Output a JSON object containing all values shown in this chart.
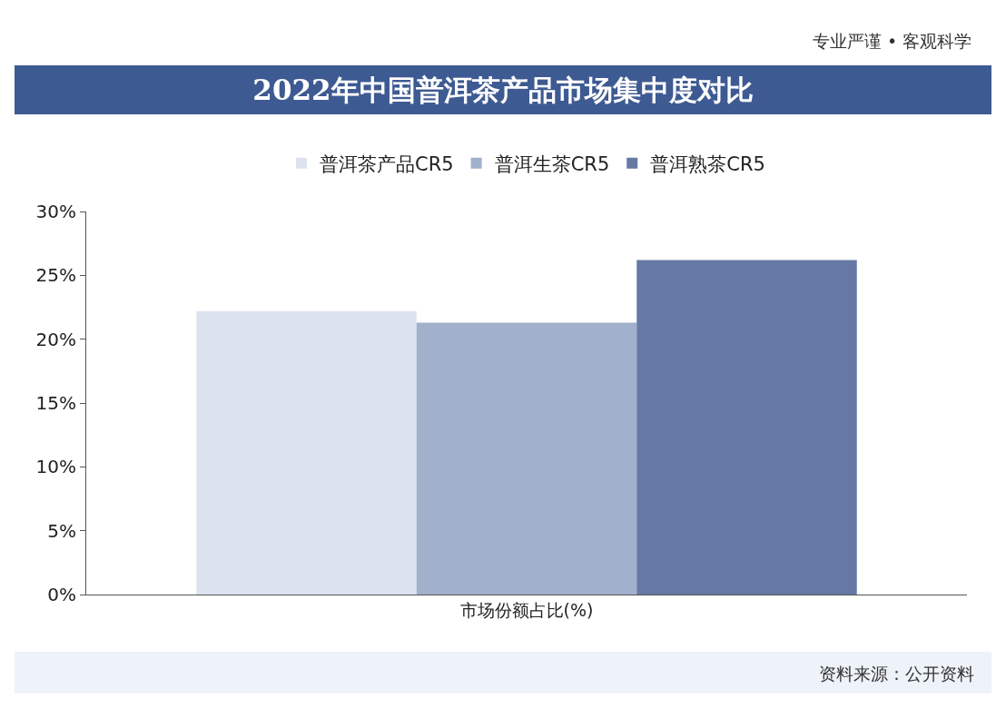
{
  "chart_data": {
    "type": "bar",
    "title": "2022年中国普洱茶产品市场集中度对比",
    "categories": [
      "市场份额占比(%)"
    ],
    "series": [
      {
        "name": "普洱茶产品CR5",
        "color": "#dce3ef",
        "values": [
          22.2
        ]
      },
      {
        "name": "普洱生茶CR5",
        "color": "#a1b0cb",
        "values": [
          21.3
        ]
      },
      {
        "name": "普洱熟茶CR5",
        "color": "#6679a5",
        "values": [
          26.2
        ]
      }
    ],
    "ylim": [
      0,
      30
    ],
    "yticks": [
      {
        "value": 0,
        "label": "0%"
      },
      {
        "value": 5,
        "label": "5%"
      },
      {
        "value": 10,
        "label": "10%"
      },
      {
        "value": 15,
        "label": "15%"
      },
      {
        "value": 20,
        "label": "20%"
      },
      {
        "value": 25,
        "label": "25%"
      },
      {
        "value": 30,
        "label": "30%"
      }
    ],
    "grid": false,
    "legend": "top",
    "annotations": [
      "专业严谨 • 客观科学",
      "资料来源：公开资料"
    ]
  }
}
